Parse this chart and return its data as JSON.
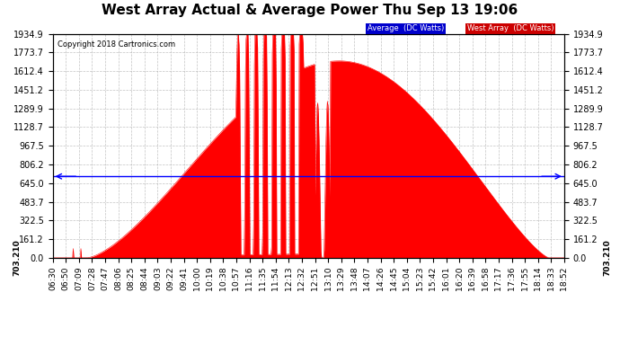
{
  "title": "West Array Actual & Average Power Thu Sep 13 19:06",
  "copyright": "Copyright 2018 Cartronics.com",
  "legend_labels": [
    "Average  (DC Watts)",
    "West Array  (DC Watts)"
  ],
  "legend_bg_colors": [
    "#0000cc",
    "#cc0000"
  ],
  "avg_value": 703.21,
  "avg_label": "703.210",
  "yticks": [
    0.0,
    161.2,
    322.5,
    483.7,
    645.0,
    806.2,
    967.5,
    1128.7,
    1289.9,
    1451.2,
    1612.4,
    1773.7,
    1934.9
  ],
  "ymax": 1934.9,
  "ymin": 0.0,
  "background_color": "#ffffff",
  "plot_bg_color": "#ffffff",
  "grid_color": "#aaaaaa",
  "fill_color": "#ff0000",
  "avg_line_color": "#0000ff",
  "title_fontsize": 11,
  "tick_fontsize": 7,
  "x_tick_labels": [
    "06:30",
    "06:50",
    "07:09",
    "07:28",
    "07:47",
    "08:06",
    "08:25",
    "08:44",
    "09:03",
    "09:22",
    "09:41",
    "10:00",
    "10:19",
    "10:38",
    "10:57",
    "11:16",
    "11:35",
    "11:54",
    "12:13",
    "12:32",
    "12:51",
    "13:10",
    "13:29",
    "13:48",
    "14:07",
    "14:26",
    "14:45",
    "15:04",
    "15:23",
    "15:42",
    "16:01",
    "16:20",
    "16:39",
    "16:58",
    "17:17",
    "17:36",
    "17:55",
    "18:14",
    "18:33",
    "18:52"
  ]
}
